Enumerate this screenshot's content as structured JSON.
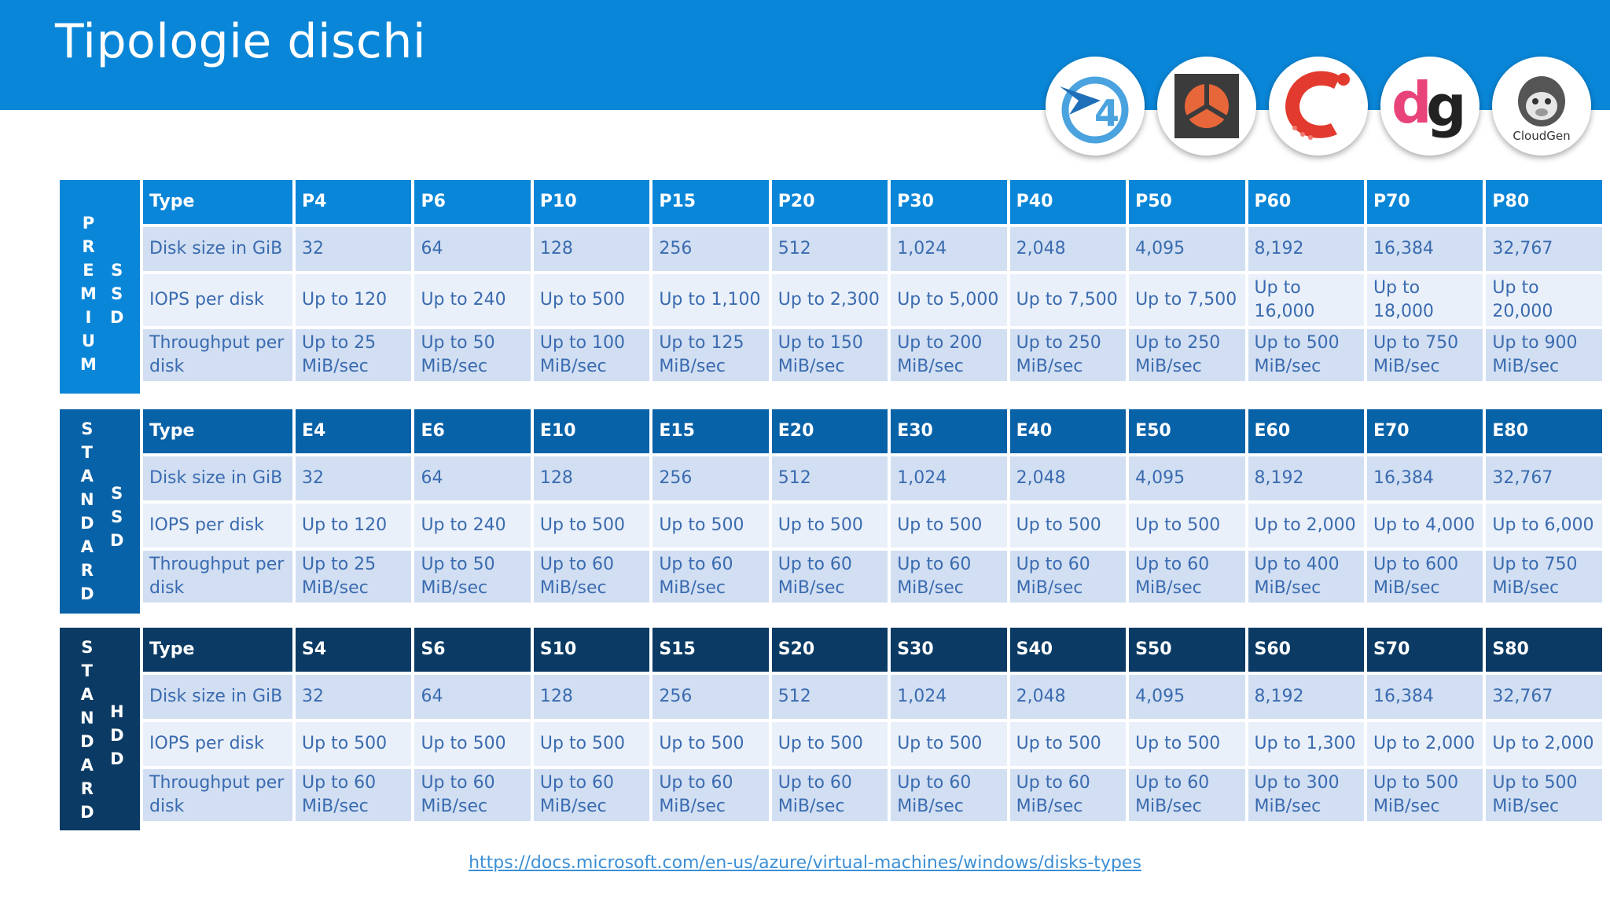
{
  "slide": {
    "title": "Tipologie dischi",
    "source_link": "https://docs.microsoft.com/en-us/azure/virtual-machines/windows/disks-types"
  },
  "logos": [
    {
      "name": "logo-4-arrow"
    },
    {
      "name": "logo-orange-square"
    },
    {
      "name": "logo-red-c"
    },
    {
      "name": "logo-dg"
    },
    {
      "name": "logo-cloudgen",
      "text": "CloudGen"
    }
  ],
  "groups": [
    {
      "id": "premium-ssd",
      "side_word": [
        "P",
        "R",
        "E",
        "M",
        "I",
        "U",
        "M"
      ],
      "side_sub": [
        "S",
        "S",
        "D"
      ],
      "header": [
        "Type",
        "P4",
        "P6",
        "P10",
        "P15",
        "P20",
        "P30",
        "P40",
        "P50",
        "P60",
        "P70",
        "P80"
      ],
      "rows": [
        [
          "Disk size in GiB",
          "32",
          "64",
          "128",
          "256",
          "512",
          "1,024",
          "2,048",
          "4,095",
          "8,192",
          "16,384",
          "32,767"
        ],
        [
          "IOPS per disk",
          "Up to 120",
          "Up to 240",
          "Up to 500",
          "Up to 1,100",
          "Up to 2,300",
          "Up to 5,000",
          "Up to 7,500",
          "Up to 7,500",
          "Up to 16,000",
          "Up to 18,000",
          "Up to 20,000"
        ],
        [
          "Throughput per disk",
          "Up to 25 MiB/sec",
          "Up to 50 MiB/sec",
          "Up to 100 MiB/sec",
          "Up to 125 MiB/sec",
          "Up to 150 MiB/sec",
          "Up to 200 MiB/sec",
          "Up to 250 MiB/sec",
          "Up to 250 MiB/sec",
          "Up to 500 MiB/sec",
          "Up to 750 MiB/sec",
          "Up to 900 MiB/sec"
        ]
      ]
    },
    {
      "id": "standard-ssd",
      "side_word": [
        "S",
        "T",
        "A",
        "N",
        "D",
        "A",
        "R",
        "D"
      ],
      "side_sub": [
        "S",
        "S",
        "D"
      ],
      "header": [
        "Type",
        "E4",
        "E6",
        "E10",
        "E15",
        "E20",
        "E30",
        "E40",
        "E50",
        "E60",
        "E70",
        "E80"
      ],
      "rows": [
        [
          "Disk size in GiB",
          "32",
          "64",
          "128",
          "256",
          "512",
          "1,024",
          "2,048",
          "4,095",
          "8,192",
          "16,384",
          "32,767"
        ],
        [
          "IOPS per disk",
          "Up to 120",
          "Up to 240",
          "Up to 500",
          "Up to 500",
          "Up to 500",
          "Up to 500",
          "Up to 500",
          "Up to 500",
          "Up to 2,000",
          "Up to 4,000",
          "Up to 6,000"
        ],
        [
          "Throughput per disk",
          "Up to 25 MiB/sec",
          "Up to 50 MiB/sec",
          "Up to 60 MiB/sec",
          "Up to 60 MiB/sec",
          "Up to 60 MiB/sec",
          "Up to 60 MiB/sec",
          "Up to 60 MiB/sec",
          "Up to 60 MiB/sec",
          "Up to 400 MiB/sec",
          "Up to 600 MiB/sec",
          "Up to 750 MiB/sec"
        ]
      ]
    },
    {
      "id": "standard-hdd",
      "side_word": [
        "S",
        "T",
        "A",
        "N",
        "D",
        "A",
        "R",
        "D"
      ],
      "side_sub": [
        "H",
        "D",
        "D"
      ],
      "header": [
        "Type",
        "S4",
        "S6",
        "S10",
        "S15",
        "S20",
        "S30",
        "S40",
        "S50",
        "S60",
        "S70",
        "S80"
      ],
      "rows": [
        [
          "Disk size in GiB",
          "32",
          "64",
          "128",
          "256",
          "512",
          "1,024",
          "2,048",
          "4,095",
          "8,192",
          "16,384",
          "32,767"
        ],
        [
          "IOPS per disk",
          "Up to 500",
          "Up to 500",
          "Up to 500",
          "Up to 500",
          "Up to 500",
          "Up to 500",
          "Up to 500",
          "Up to 500",
          "Up to 1,300",
          "Up to 2,000",
          "Up to 2,000"
        ],
        [
          "Throughput per disk",
          "Up to 60 MiB/sec",
          "Up to 60 MiB/sec",
          "Up to 60 MiB/sec",
          "Up to 60 MiB/sec",
          "Up to 60 MiB/sec",
          "Up to 60 MiB/sec",
          "Up to 60 MiB/sec",
          "Up to 60 MiB/sec",
          "Up to 300 MiB/sec",
          "Up to 500 MiB/sec",
          "Up to 500 MiB/sec"
        ]
      ]
    }
  ]
}
